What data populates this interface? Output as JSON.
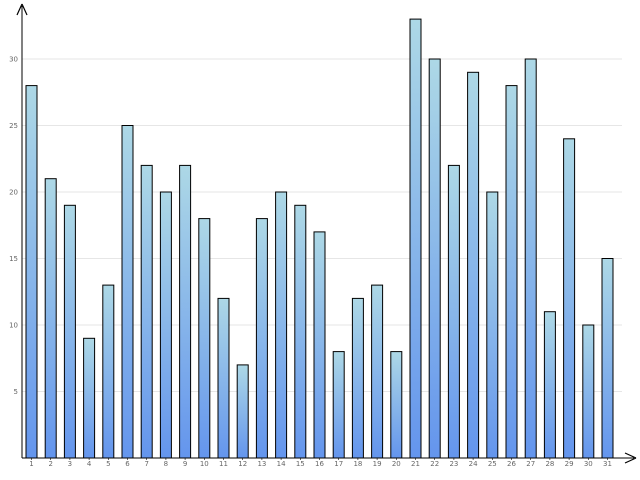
{
  "chart_data": {
    "type": "bar",
    "title": "",
    "xlabel": "",
    "ylabel": "",
    "categories": [
      "1",
      "2",
      "3",
      "4",
      "5",
      "6",
      "7",
      "8",
      "9",
      "10",
      "11",
      "12",
      "13",
      "14",
      "15",
      "16",
      "17",
      "18",
      "19",
      "20",
      "21",
      "22",
      "23",
      "24",
      "25",
      "26",
      "27",
      "28",
      "29",
      "30",
      "31"
    ],
    "values": [
      28,
      21,
      19,
      9,
      13,
      25,
      22,
      20,
      22,
      18,
      12,
      7,
      18,
      20,
      19,
      17,
      8,
      12,
      13,
      8,
      33,
      30,
      22,
      29,
      20,
      28,
      30,
      11,
      24,
      10,
      15
    ],
    "ylim": [
      0,
      34
    ],
    "yticks": [
      "5",
      "10",
      "15",
      "20",
      "25",
      "30"
    ],
    "grid": true,
    "legend": "none",
    "colors": {
      "bar_top": "#add8e6",
      "bar_bottom": "#6495ed",
      "bar_stroke": "#000000",
      "grid": "#e6e6e6",
      "axis": "#000000",
      "tick_text": "#666666"
    }
  }
}
